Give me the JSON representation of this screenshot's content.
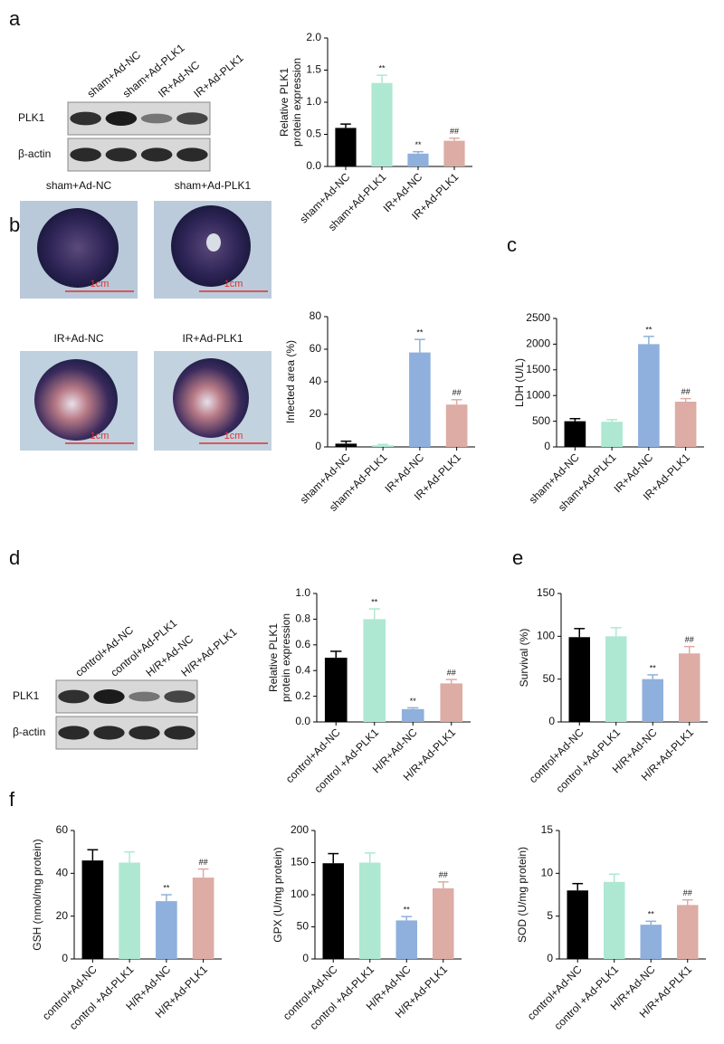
{
  "figure": {
    "panel_labels": [
      "a",
      "b",
      "c",
      "d",
      "e",
      "f"
    ],
    "blots": [
      {
        "lanes": [
          "sham+Ad-NC",
          "sham+Ad-PLK1",
          "IR+Ad-NC",
          "IR+Ad-PLK1"
        ],
        "rows": [
          "PLK1",
          "β-actin"
        ]
      },
      {
        "lanes": [
          "control+Ad-NC",
          "control+Ad-PLK1",
          "H/R+Ad-NC",
          "H/R+Ad-PLK1"
        ],
        "rows": [
          "PLK1",
          "β-actin"
        ]
      }
    ],
    "photos": [
      {
        "title": "sham+Ad-NC",
        "scale": "1cm"
      },
      {
        "title": "sham+Ad-PLK1",
        "scale": "1cm"
      },
      {
        "title": "IR+Ad-NC",
        "scale": "1cm"
      },
      {
        "title": "IR+Ad-PLK1",
        "scale": "1cm"
      }
    ]
  },
  "chart_data": [
    {
      "type": "bar",
      "ylabel": [
        "Relative PLK1",
        "protein expression"
      ],
      "categories": [
        "sham+Ad-NC",
        "sham+Ad-PLK1",
        "IR+Ad-NC",
        "IR+Ad-PLK1"
      ],
      "values": [
        0.6,
        1.3,
        0.2,
        0.4
      ],
      "errors": [
        0.06,
        0.12,
        0.03,
        0.04
      ],
      "annotations": [
        null,
        "**",
        "**",
        "##"
      ],
      "colors": [
        "#000000",
        "#aee8d2",
        "#8fb0dc",
        "#dcaca5"
      ],
      "ylim": [
        0,
        2
      ],
      "yticks": [
        {
          "value": 0,
          "label": "0.0"
        },
        0.5,
        {
          "value": 1,
          "label": "1.0"
        },
        1.5,
        {
          "value": 2,
          "label": "2.0"
        }
      ]
    },
    {
      "type": "bar",
      "ylabel": [
        "Infected area (%)"
      ],
      "categories": [
        "sham+Ad-NC",
        "sham+Ad-PLK1",
        "IR+Ad-NC",
        "IR+Ad-PLK1"
      ],
      "values": [
        2,
        1,
        58,
        26
      ],
      "errors": [
        1.5,
        0.5,
        8,
        3
      ],
      "annotations": [
        null,
        null,
        "**",
        "##"
      ],
      "colors": [
        "#000000",
        "#aee8d2",
        "#8fb0dc",
        "#dcaca5"
      ],
      "ylim": [
        0,
        80
      ],
      "yticks": [
        0,
        20,
        40,
        60,
        80
      ]
    },
    {
      "type": "bar",
      "ylabel": [
        "LDH (U/L)"
      ],
      "categories": [
        "sham+Ad-NC",
        "sham+Ad-PLK1",
        "IR+Ad-NC",
        "IR+Ad-PLK1"
      ],
      "values": [
        500,
        490,
        2000,
        880
      ],
      "errors": [
        50,
        40,
        150,
        60
      ],
      "annotations": [
        null,
        null,
        "**",
        "##"
      ],
      "colors": [
        "#000000",
        "#aee8d2",
        "#8fb0dc",
        "#dcaca5"
      ],
      "ylim": [
        0,
        2500
      ],
      "yticks": [
        0,
        500,
        1000,
        1500,
        2000,
        2500
      ]
    },
    {
      "type": "bar",
      "ylabel": [
        "Relative PLK1",
        "protein expression"
      ],
      "categories": [
        "control+Ad-NC",
        "control +Ad-PLK1",
        "H/R+Ad-NC",
        "H/R+Ad-PLK1"
      ],
      "values": [
        0.5,
        0.8,
        0.1,
        0.3
      ],
      "errors": [
        0.05,
        0.08,
        0.01,
        0.03
      ],
      "annotations": [
        null,
        "**",
        "**",
        "##"
      ],
      "colors": [
        "#000000",
        "#aee8d2",
        "#8fb0dc",
        "#dcaca5"
      ],
      "ylim": [
        0,
        1
      ],
      "yticks": [
        {
          "value": 0,
          "label": "0.0"
        },
        0.2,
        0.4,
        0.6,
        0.8,
        {
          "value": 1,
          "label": "1.0"
        }
      ]
    },
    {
      "type": "bar",
      "ylabel": [
        "Survival (%)"
      ],
      "categories": [
        "control+Ad-NC",
        "control +Ad-PLK1",
        "H/R+Ad-NC",
        "H/R+Ad-PLK1"
      ],
      "values": [
        99,
        100,
        50,
        80
      ],
      "errors": [
        10,
        10,
        5,
        8
      ],
      "annotations": [
        null,
        null,
        "**",
        "##"
      ],
      "colors": [
        "#000000",
        "#aee8d2",
        "#8fb0dc",
        "#dcaca5"
      ],
      "ylim": [
        0,
        150
      ],
      "yticks": [
        0,
        50,
        100,
        150
      ]
    },
    {
      "type": "bar",
      "ylabel": [
        "GSH (nmol/mg protein)"
      ],
      "categories": [
        "control+Ad-NC",
        "control +Ad-PLK1",
        "H/R+Ad-NC",
        "H/R+Ad-PLK1"
      ],
      "values": [
        46,
        45,
        27,
        38
      ],
      "errors": [
        5,
        5,
        3,
        4
      ],
      "annotations": [
        null,
        null,
        "**",
        "##"
      ],
      "colors": [
        "#000000",
        "#aee8d2",
        "#8fb0dc",
        "#dcaca5"
      ],
      "ylim": [
        0,
        60
      ],
      "yticks": [
        0,
        20,
        40,
        60
      ]
    },
    {
      "type": "bar",
      "ylabel": [
        "GPX (U/mg protein)"
      ],
      "categories": [
        "control+Ad-NC",
        "control +Ad-PLK1",
        "H/R+Ad-NC",
        "H/R+Ad-PLK1"
      ],
      "values": [
        149,
        150,
        60,
        110
      ],
      "errors": [
        15,
        15,
        6,
        10
      ],
      "annotations": [
        null,
        null,
        "**",
        "##"
      ],
      "colors": [
        "#000000",
        "#aee8d2",
        "#8fb0dc",
        "#dcaca5"
      ],
      "ylim": [
        0,
        200
      ],
      "yticks": [
        0,
        50,
        100,
        150,
        200
      ]
    },
    {
      "type": "bar",
      "ylabel": [
        "SOD (U/mg protein)"
      ],
      "categories": [
        "control+Ad-NC",
        "control +Ad-PLK1",
        "H/R+Ad-NC",
        "H/R+Ad-PLK1"
      ],
      "values": [
        8,
        9,
        4,
        6.3
      ],
      "errors": [
        0.8,
        0.9,
        0.4,
        0.6
      ],
      "annotations": [
        null,
        null,
        "**",
        "##"
      ],
      "colors": [
        "#000000",
        "#aee8d2",
        "#8fb0dc",
        "#dcaca5"
      ],
      "ylim": [
        0,
        15
      ],
      "yticks": [
        0,
        5,
        10,
        15
      ]
    }
  ]
}
